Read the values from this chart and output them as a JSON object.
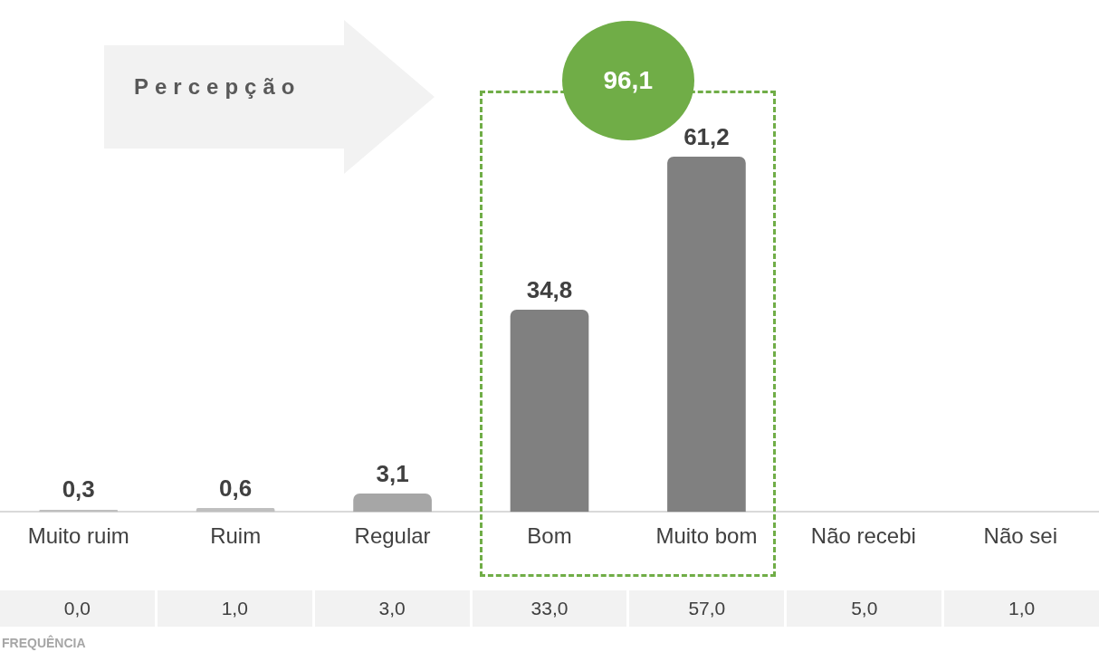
{
  "chart_data": {
    "type": "bar",
    "categories": [
      "Muito ruim",
      "Ruim",
      "Regular",
      "Bom",
      "Muito bom",
      "Não recebi",
      "Não sei"
    ],
    "values": [
      0.3,
      0.6,
      3.1,
      34.8,
      61.2,
      null,
      null
    ],
    "colors": [
      "#bfbfbf",
      "#bfbfbf",
      "#a6a6a6",
      "#808080",
      "#808080",
      "#808080",
      "#808080"
    ],
    "value_labels": [
      "0,3",
      "0,6",
      "3,1",
      "34,8",
      "61,2",
      null,
      null
    ],
    "grid": false,
    "legend": false,
    "annotations": [
      "Percepção",
      "96,1",
      "FREQUÊNCIA",
      "0,0",
      "1,0",
      "3,0",
      "33,0",
      "57,0",
      "5,0",
      "1,0"
    ]
  }
}
